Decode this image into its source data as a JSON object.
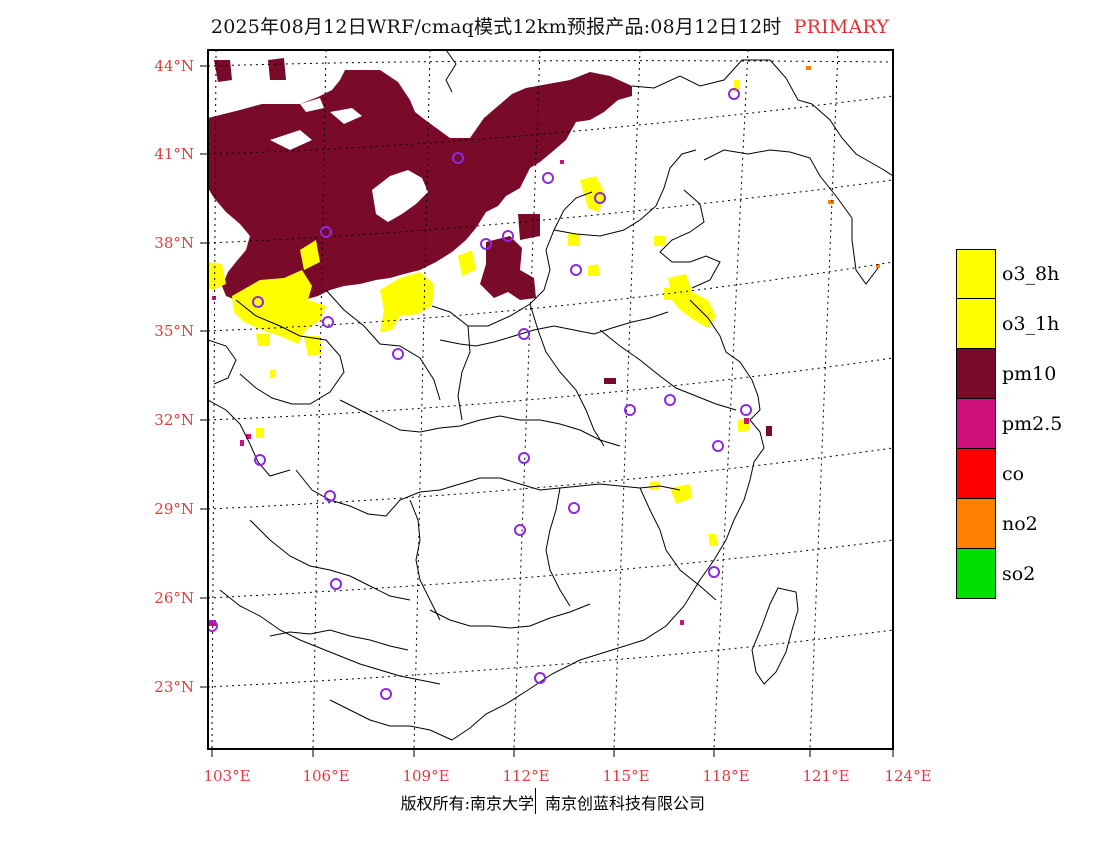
{
  "title": {
    "main": "2025年08月12日WRF/cmaq模式12km预报产品:08月12日12时",
    "tag": "PRIMARY"
  },
  "map": {
    "lat_labels": [
      "44°N",
      "41°N",
      "38°N",
      "35°N",
      "32°N",
      "29°N",
      "26°N",
      "23°N"
    ],
    "lon_labels": [
      "103°E",
      "106°E",
      "109°E",
      "112°E",
      "115°E",
      "118°E",
      "121°E",
      "124°E"
    ],
    "label_color": "#e53b3b",
    "station_marker_color": "#8a2be2"
  },
  "legend": {
    "items": [
      {
        "label": "o3_8h",
        "color": "#ffff00"
      },
      {
        "label": "o3_1h",
        "color": "#ffff00"
      },
      {
        "label": "pm10",
        "color": "#7a0a2a"
      },
      {
        "label": "pm2.5",
        "color": "#d0107a"
      },
      {
        "label": "co",
        "color": "#ff0000"
      },
      {
        "label": "no2",
        "color": "#ff8000"
      },
      {
        "label": "so2",
        "color": "#00e000"
      }
    ]
  },
  "footer": {
    "left": "版权所有:南京大学",
    "right": "南京创蓝科技有限公司"
  }
}
